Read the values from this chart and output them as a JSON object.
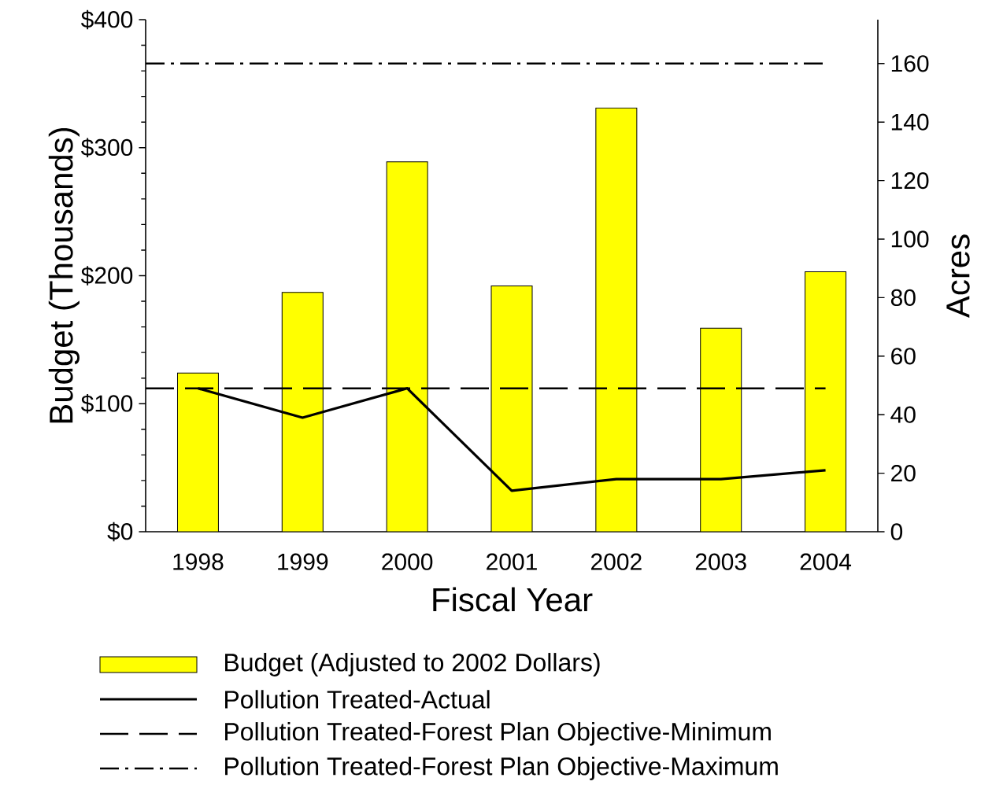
{
  "chart_data": {
    "type": "bar",
    "xlabel": "Fiscal Year",
    "ylabel": "Budget (Thousands)",
    "y2label": "Acres",
    "categories": [
      "1998",
      "1999",
      "2000",
      "2001",
      "2002",
      "2003",
      "2004"
    ],
    "series": [
      {
        "name": "Budget (Adjusted to 2002 Dollars)",
        "color": "#ffff00",
        "values": [
          124,
          187,
          289,
          192,
          331,
          159,
          203
        ]
      },
      {
        "name": "Pollution Treated-Actual",
        "type": "line",
        "axis": "y2",
        "color": "#000000",
        "line_style": "solid",
        "values": [
          49,
          39,
          49,
          14,
          18,
          18,
          21
        ]
      }
    ],
    "ref_lines": [
      {
        "axis": "y2",
        "value": 49,
        "label": "Pollution Treated-Forest Plan Objective-Minimum",
        "line_style": "dashed",
        "color": "#000000"
      },
      {
        "axis": "y2",
        "value": 160,
        "label": "Pollution Treated-Forest Plan Objective-Maximum",
        "line_style": "dashdot",
        "color": "#000000"
      }
    ],
    "ylim": [
      0,
      400
    ],
    "yticks": [
      {
        "value": 0,
        "label": "$0"
      },
      {
        "value": 100,
        "label": "$100"
      },
      {
        "value": 200,
        "label": "$200"
      },
      {
        "value": 300,
        "label": "$300"
      },
      {
        "value": 400,
        "label": "$400"
      }
    ],
    "y2lim": [
      0,
      175
    ],
    "y2ticks": [
      0,
      20,
      40,
      60,
      80,
      100,
      120,
      140,
      160
    ],
    "legend": "bottom"
  }
}
